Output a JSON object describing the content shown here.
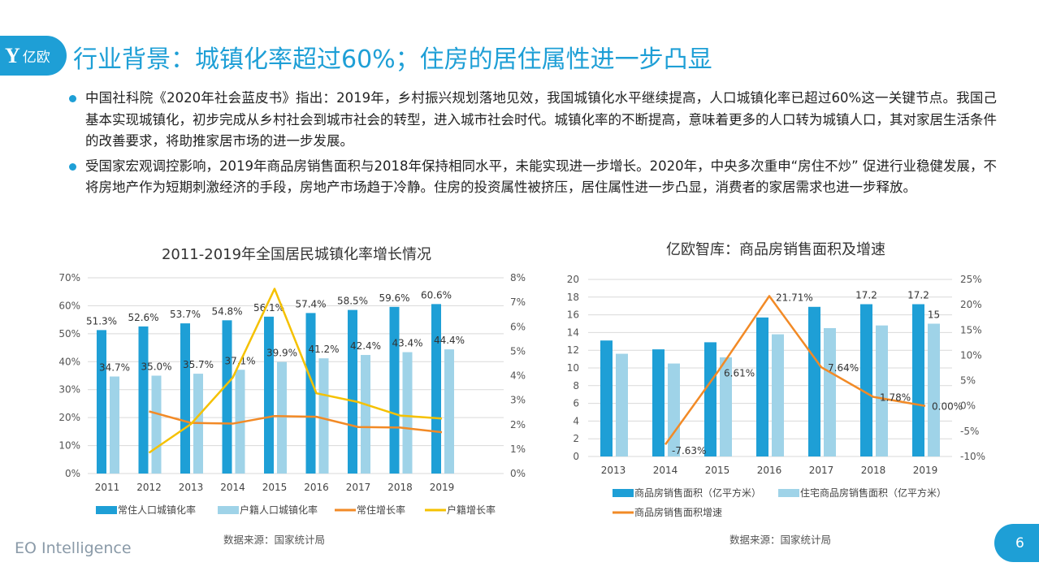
{
  "logo": {
    "text": "亿欧",
    "mark": "Y"
  },
  "title": "行业背景：城镇化率超过60%；住房的居住属性进一步凸显",
  "paragraphs": [
    "中国社科院《2020年社会蓝皮书》指出：2019年，乡村振兴规划落地见效，我国城镇化水平继续提高，人口城镇化率已超过60%这一关键节点。我国己基本实现城镇化，初步完成从乡村社会到城市社会的转型，进入城市社会时代。城镇化率的不断提高，意味着更多的人口转为城镇人口，其对家居生活条件的改善要求，将助推家居市场的进一步发展。",
    "受国家宏观调控影响，2019年商品房销售面积与2018年保持相同水平，未能实现进一步增长。2020年，中央多次重申“房住不炒” 促进行业稳健发展，不将房地产作为短期刺激经济的手段，房地产市场趋于冷静。住房的投资属性被挤压，居住属性进一步凸显，消费者的家居需求也进一步释放。"
  ],
  "footer": "EO Intelligence",
  "page_number": "6",
  "colors": {
    "accent": "#1e9fd6",
    "dark_bar": "#1e9fd6",
    "light_bar": "#9fd3e8",
    "orange": "#f28a26",
    "yellow": "#f5c100"
  },
  "chart_data": [
    {
      "type": "bar+line",
      "title": "2011-2019年全国居民城镇化率增长情况",
      "source": "数据来源：国家统计局",
      "categories": [
        "2011",
        "2012",
        "2013",
        "2014",
        "2015",
        "2016",
        "2017",
        "2018",
        "2019"
      ],
      "y_left": {
        "range": [
          0,
          70
        ],
        "ticks": [
          "0%",
          "10%",
          "20%",
          "30%",
          "40%",
          "50%",
          "60%",
          "70%"
        ]
      },
      "y_right": {
        "range": [
          0,
          8
        ],
        "ticks": [
          "0%",
          "1%",
          "2%",
          "3%",
          "4%",
          "5%",
          "6%",
          "7%",
          "8%"
        ]
      },
      "grid": true,
      "legend_position": "bottom",
      "series": [
        {
          "name": "常住人口城镇化率",
          "kind": "bar",
          "axis": "left",
          "values": [
            51.3,
            52.6,
            53.7,
            54.8,
            56.1,
            57.4,
            58.5,
            59.6,
            60.6
          ],
          "labels": [
            "51.3%",
            "52.6%",
            "53.7%",
            "54.8%",
            "56.1%",
            "57.4%",
            "58.5%",
            "59.6%",
            "60.6%"
          ]
        },
        {
          "name": "户籍人口城镇化率",
          "kind": "bar",
          "axis": "left",
          "values": [
            34.7,
            35.0,
            35.7,
            37.1,
            39.9,
            41.2,
            42.4,
            43.4,
            44.4
          ],
          "labels": [
            "34.7%",
            "35.0%",
            "35.7%",
            "37.1%",
            "39.9%",
            "41.2%",
            "42.4%",
            "43.4%",
            "44.4%"
          ]
        },
        {
          "name": "常住增长率",
          "kind": "line",
          "axis": "right",
          "values": [
            null,
            2.54,
            2.07,
            2.04,
            2.35,
            2.32,
            1.9,
            1.88,
            1.69
          ]
        },
        {
          "name": "户籍增长率",
          "kind": "line",
          "axis": "right",
          "values": [
            null,
            0.85,
            2.02,
            3.92,
            7.55,
            3.28,
            2.92,
            2.37,
            2.25
          ]
        }
      ]
    },
    {
      "type": "bar+line",
      "title": "亿欧智库：商品房销售面积及增速",
      "source": "数据来源：国家统计局",
      "categories": [
        "2013",
        "2014",
        "2015",
        "2016",
        "2017",
        "2018",
        "2019"
      ],
      "y_left": {
        "range": [
          0,
          20
        ],
        "ticks": [
          "0",
          "2",
          "4",
          "6",
          "8",
          "10",
          "12",
          "14",
          "16",
          "18",
          "20"
        ]
      },
      "y_right": {
        "range": [
          -10,
          25
        ],
        "ticks": [
          "-10%",
          "-5%",
          "0%",
          "5%",
          "10%",
          "15%",
          "20%",
          "25%"
        ]
      },
      "grid": true,
      "legend_position": "bottom",
      "series": [
        {
          "name": "商品房销售面积（亿平方米）",
          "kind": "bar",
          "axis": "left",
          "values": [
            13.1,
            12.1,
            12.9,
            15.7,
            16.9,
            17.2,
            17.2
          ],
          "labels": [
            "",
            "",
            "",
            "",
            "",
            "17.2",
            "17.2"
          ]
        },
        {
          "name": "住宅商品房销售面积（亿平方米）",
          "kind": "bar",
          "axis": "left",
          "values": [
            11.6,
            10.5,
            11.2,
            13.8,
            14.5,
            14.8,
            15
          ],
          "labels": [
            "",
            "",
            "",
            "",
            "",
            "",
            "15"
          ]
        },
        {
          "name": "商品房销售面积增速",
          "kind": "line",
          "axis": "right",
          "values": [
            null,
            -7.63,
            6.61,
            21.71,
            7.64,
            1.78,
            0.0
          ],
          "labels": [
            "",
            "-7.63%",
            "6.61%",
            "21.71%",
            "7.64%",
            "1.78%",
            "0.00%"
          ]
        }
      ]
    }
  ]
}
